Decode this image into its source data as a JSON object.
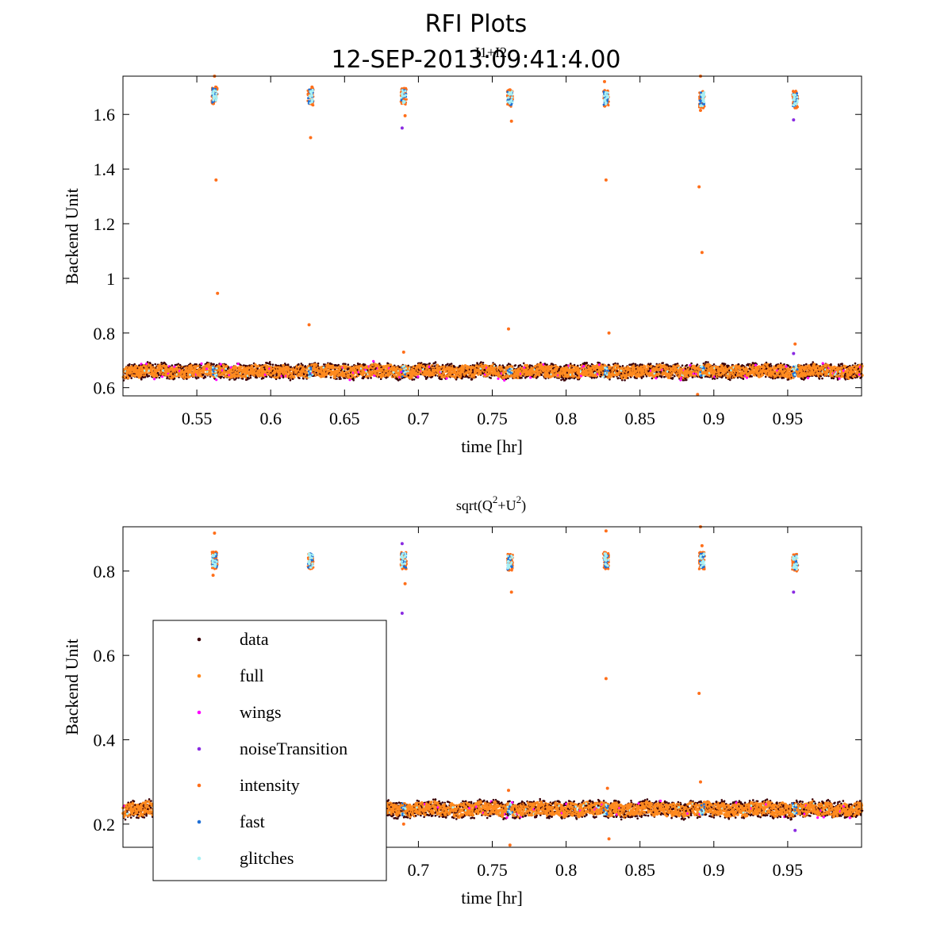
{
  "figure": {
    "title_line1": "RFI Plots",
    "title_line2": "12-SEP-2013:09:41:4.00"
  },
  "colors": {
    "data": "#3a0008",
    "full": "#ff8a1f",
    "wings": "#ff00ff",
    "noiseTransition": "#8a2be2",
    "intensity": "#ff6f1a",
    "fast": "#1f6fd6",
    "glitches": "#a8f0f4"
  },
  "chart_data": [
    {
      "type": "scatter",
      "title": "I1+I2",
      "xlabel": "time [hr]",
      "ylabel": "Backend Unit",
      "xlim": [
        0.5,
        1.0
      ],
      "ylim": [
        0.57,
        1.74
      ],
      "xticks": [
        "0.55",
        "0.6",
        "0.65",
        "0.7",
        "0.75",
        "0.8",
        "0.85",
        "0.9",
        "0.95"
      ],
      "xtick_values": [
        0.55,
        0.6,
        0.65,
        0.7,
        0.75,
        0.8,
        0.85,
        0.9,
        0.95
      ],
      "yticks": [
        "0.6",
        "0.8",
        "1",
        "1.2",
        "1.4",
        "1.6"
      ],
      "ytick_values": [
        0.6,
        0.8,
        1.0,
        1.2,
        1.4,
        1.6
      ],
      "baseline": {
        "level": 0.66,
        "spread": 0.025,
        "x_start": 0.5,
        "x_end": 1.0
      },
      "clusters": [
        {
          "x": 0.562,
          "y": 1.67
        },
        {
          "x": 0.627,
          "y": 1.665
        },
        {
          "x": 0.69,
          "y": 1.665
        },
        {
          "x": 0.762,
          "y": 1.66
        },
        {
          "x": 0.827,
          "y": 1.66
        },
        {
          "x": 0.892,
          "y": 1.655
        },
        {
          "x": 0.955,
          "y": 1.655
        }
      ],
      "outliers": [
        {
          "x": 0.563,
          "y": 1.36,
          "series": "intensity"
        },
        {
          "x": 0.564,
          "y": 0.945,
          "series": "intensity"
        },
        {
          "x": 0.562,
          "y": 1.74,
          "series": "intensity"
        },
        {
          "x": 0.627,
          "y": 1.515,
          "series": "intensity"
        },
        {
          "x": 0.626,
          "y": 0.83,
          "series": "intensity"
        },
        {
          "x": 0.628,
          "y": 1.7,
          "series": "intensity"
        },
        {
          "x": 0.689,
          "y": 1.55,
          "series": "noiseTransition"
        },
        {
          "x": 0.691,
          "y": 1.595,
          "series": "intensity"
        },
        {
          "x": 0.69,
          "y": 0.73,
          "series": "intensity"
        },
        {
          "x": 0.763,
          "y": 1.575,
          "series": "intensity"
        },
        {
          "x": 0.761,
          "y": 0.815,
          "series": "intensity"
        },
        {
          "x": 0.762,
          "y": 1.69,
          "series": "intensity"
        },
        {
          "x": 0.826,
          "y": 1.72,
          "series": "intensity"
        },
        {
          "x": 0.827,
          "y": 1.36,
          "series": "intensity"
        },
        {
          "x": 0.829,
          "y": 0.8,
          "series": "intensity"
        },
        {
          "x": 0.891,
          "y": 1.74,
          "series": "intensity"
        },
        {
          "x": 0.89,
          "y": 1.335,
          "series": "intensity"
        },
        {
          "x": 0.892,
          "y": 1.095,
          "series": "intensity"
        },
        {
          "x": 0.891,
          "y": 1.615,
          "series": "intensity"
        },
        {
          "x": 0.889,
          "y": 0.575,
          "series": "intensity"
        },
        {
          "x": 0.954,
          "y": 1.58,
          "series": "noiseTransition"
        },
        {
          "x": 0.955,
          "y": 0.76,
          "series": "intensity"
        },
        {
          "x": 0.954,
          "y": 0.725,
          "series": "noiseTransition"
        }
      ]
    },
    {
      "type": "scatter",
      "title": "sqrt(Q²+U²)",
      "title_parts": [
        "sqrt(Q",
        "2",
        "+U",
        "2",
        ")"
      ],
      "xlabel": "time [hr]",
      "ylabel": "Backend Unit",
      "xlim": [
        0.5,
        1.0
      ],
      "ylim": [
        0.145,
        0.905
      ],
      "xticks": [
        "0.7",
        "0.75",
        "0.8",
        "0.85",
        "0.9",
        "0.95"
      ],
      "xtick_values": [
        0.7,
        0.75,
        0.8,
        0.85,
        0.9,
        0.95
      ],
      "yticks": [
        "0.2",
        "0.4",
        "0.6",
        "0.8"
      ],
      "ytick_values": [
        0.2,
        0.4,
        0.6,
        0.8
      ],
      "baseline": {
        "level": 0.235,
        "spread": 0.018,
        "x_start": 0.5,
        "x_end": 1.0
      },
      "clusters": [
        {
          "x": 0.562,
          "y": 0.825
        },
        {
          "x": 0.627,
          "y": 0.825
        },
        {
          "x": 0.69,
          "y": 0.825
        },
        {
          "x": 0.762,
          "y": 0.82
        },
        {
          "x": 0.827,
          "y": 0.825
        },
        {
          "x": 0.892,
          "y": 0.825
        },
        {
          "x": 0.955,
          "y": 0.82
        }
      ],
      "outliers": [
        {
          "x": 0.562,
          "y": 0.89,
          "series": "intensity"
        },
        {
          "x": 0.561,
          "y": 0.79,
          "series": "intensity"
        },
        {
          "x": 0.689,
          "y": 0.865,
          "series": "noiseTransition"
        },
        {
          "x": 0.689,
          "y": 0.7,
          "series": "noiseTransition"
        },
        {
          "x": 0.691,
          "y": 0.77,
          "series": "intensity"
        },
        {
          "x": 0.763,
          "y": 0.75,
          "series": "intensity"
        },
        {
          "x": 0.827,
          "y": 0.895,
          "series": "intensity"
        },
        {
          "x": 0.827,
          "y": 0.545,
          "series": "intensity"
        },
        {
          "x": 0.828,
          "y": 0.285,
          "series": "intensity"
        },
        {
          "x": 0.829,
          "y": 0.165,
          "series": "intensity"
        },
        {
          "x": 0.891,
          "y": 0.905,
          "series": "intensity"
        },
        {
          "x": 0.89,
          "y": 0.51,
          "series": "intensity"
        },
        {
          "x": 0.891,
          "y": 0.3,
          "series": "intensity"
        },
        {
          "x": 0.892,
          "y": 0.86,
          "series": "intensity"
        },
        {
          "x": 0.954,
          "y": 0.75,
          "series": "noiseTransition"
        },
        {
          "x": 0.955,
          "y": 0.185,
          "series": "noiseTransition"
        },
        {
          "x": 0.762,
          "y": 0.15,
          "series": "intensity"
        },
        {
          "x": 0.761,
          "y": 0.28,
          "series": "intensity"
        },
        {
          "x": 0.69,
          "y": 0.2,
          "series": "intensity"
        }
      ],
      "legend": {
        "placement": "lower-left",
        "entries": [
          "data",
          "full",
          "wings",
          "noiseTransition",
          "intensity",
          "fast",
          "glitches"
        ]
      }
    }
  ]
}
